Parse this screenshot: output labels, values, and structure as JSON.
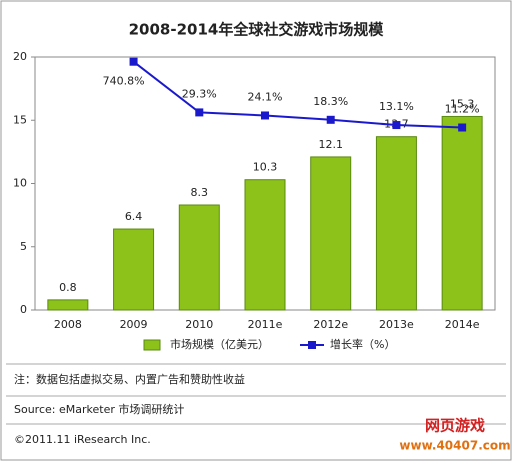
{
  "chart_data": {
    "type": "bar",
    "title": "2008-2014年全球社交游戏市场规模",
    "categories": [
      "2008",
      "2009",
      "2010",
      "2011e",
      "2012e",
      "2013e",
      "2014e"
    ],
    "series": [
      {
        "name": "市场规模（亿美元）",
        "color": "#8cc21a",
        "values": [
          0.8,
          6.4,
          8.3,
          10.3,
          12.1,
          13.7,
          15.3
        ]
      },
      {
        "name": "增长率（%）",
        "color": "#1a1acc",
        "type": "line",
        "axis": "y2",
        "values": [
          null,
          740.8,
          29.3,
          24.1,
          18.3,
          13.1,
          11.2
        ],
        "value_labels": [
          null,
          "740.8%",
          "29.3%",
          "24.1%",
          "18.3%",
          "13.1%",
          "11.2%"
        ]
      }
    ],
    "ylim": [
      0,
      20
    ],
    "yticks": [
      0,
      5,
      10,
      15,
      20
    ],
    "y2lim": [
      0.0001,
      1000
    ],
    "y2log": true,
    "grid": false,
    "legend": "bottom"
  },
  "notes": [
    "注：数据包括虚拟交易、内置广告和赞助性收益",
    "Source: eMarketer 市场调研统计",
    "©2011.11 iResearch Inc."
  ],
  "watermark": {
    "title": "网页游戏",
    "url": "www.40407.com"
  }
}
